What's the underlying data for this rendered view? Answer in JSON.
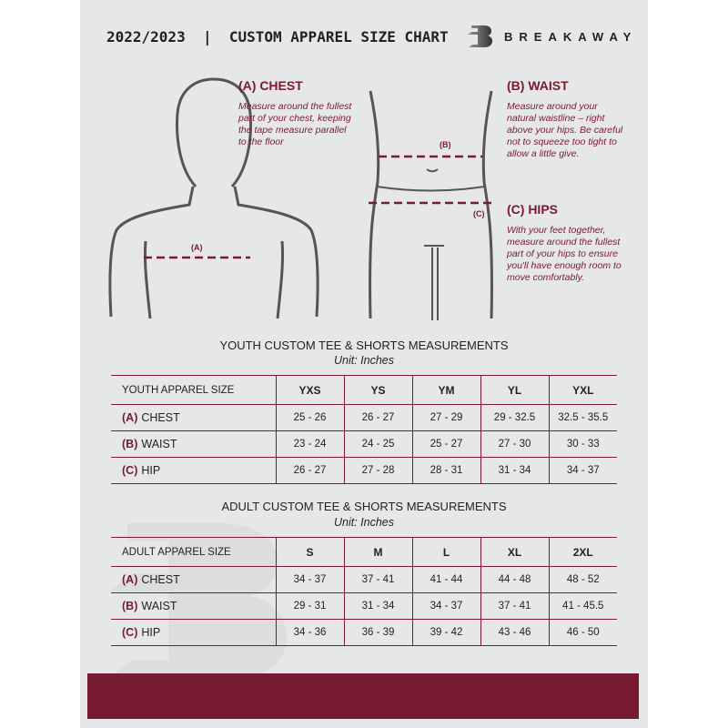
{
  "header": {
    "title": "2022/2023  |  CUSTOM APPAREL SIZE CHART",
    "brand": "BREAKAWAY",
    "logo_letter": "B"
  },
  "guide": {
    "chest": {
      "title": "(A) CHEST",
      "text": "Measure around the fullest part of your chest, keeping the tape measure parallel to the floor",
      "marker": "(A)"
    },
    "waist": {
      "title": "(B) WAIST",
      "text": "Measure around your natural waistline – right above your hips. Be careful not to squeeze too tight to allow a little give.",
      "marker": "(B)"
    },
    "hips": {
      "title": "(C) HIPS",
      "text": "With your feet together, measure around the fullest part of your hips to ensure you'll have enough room to move comfortably.",
      "marker": "(C)"
    }
  },
  "youth": {
    "title": "YOUTH CUSTOM TEE & SHORTS MEASUREMENTS",
    "unit": "Unit: Inches",
    "size_label": "YOUTH APPAREL SIZE",
    "sizes": [
      "YXS",
      "YS",
      "YM",
      "YL",
      "YXL"
    ],
    "rows": [
      {
        "letter": "(A)",
        "name": "CHEST",
        "values": [
          "25 - 26",
          "26 - 27",
          "27 - 29",
          "29 - 32.5",
          "32.5 - 35.5"
        ]
      },
      {
        "letter": "(B)",
        "name": "WAIST",
        "values": [
          "23 - 24",
          "24 - 25",
          "25 - 27",
          "27 - 30",
          "30 - 33"
        ]
      },
      {
        "letter": "(C)",
        "name": "HIP",
        "values": [
          "26 - 27",
          "27 - 28",
          "28 - 31",
          "31 - 34",
          "34 - 37"
        ]
      }
    ]
  },
  "adult": {
    "title": "ADULT CUSTOM TEE & SHORTS MEASUREMENTS",
    "unit": "Unit: Inches",
    "size_label": "ADULT APPAREL SIZE",
    "sizes": [
      "S",
      "M",
      "L",
      "XL",
      "2XL"
    ],
    "rows": [
      {
        "letter": "(A)",
        "name": "CHEST",
        "values": [
          "34 - 37",
          "37 - 41",
          "41 - 44",
          "44 - 48",
          "48 - 52"
        ]
      },
      {
        "letter": "(B)",
        "name": "WAIST",
        "values": [
          "29 - 31",
          "31 - 34",
          "34 - 37",
          "37 - 41",
          "41 - 45.5"
        ]
      },
      {
        "letter": "(C)",
        "name": "HIP",
        "values": [
          "34 - 36",
          "36 - 39",
          "39 - 42",
          "43 - 46",
          "46 - 50"
        ]
      }
    ]
  },
  "colors": {
    "accent": "#7a1a2e",
    "background": "#e6e7e8",
    "band": "#761b30"
  }
}
